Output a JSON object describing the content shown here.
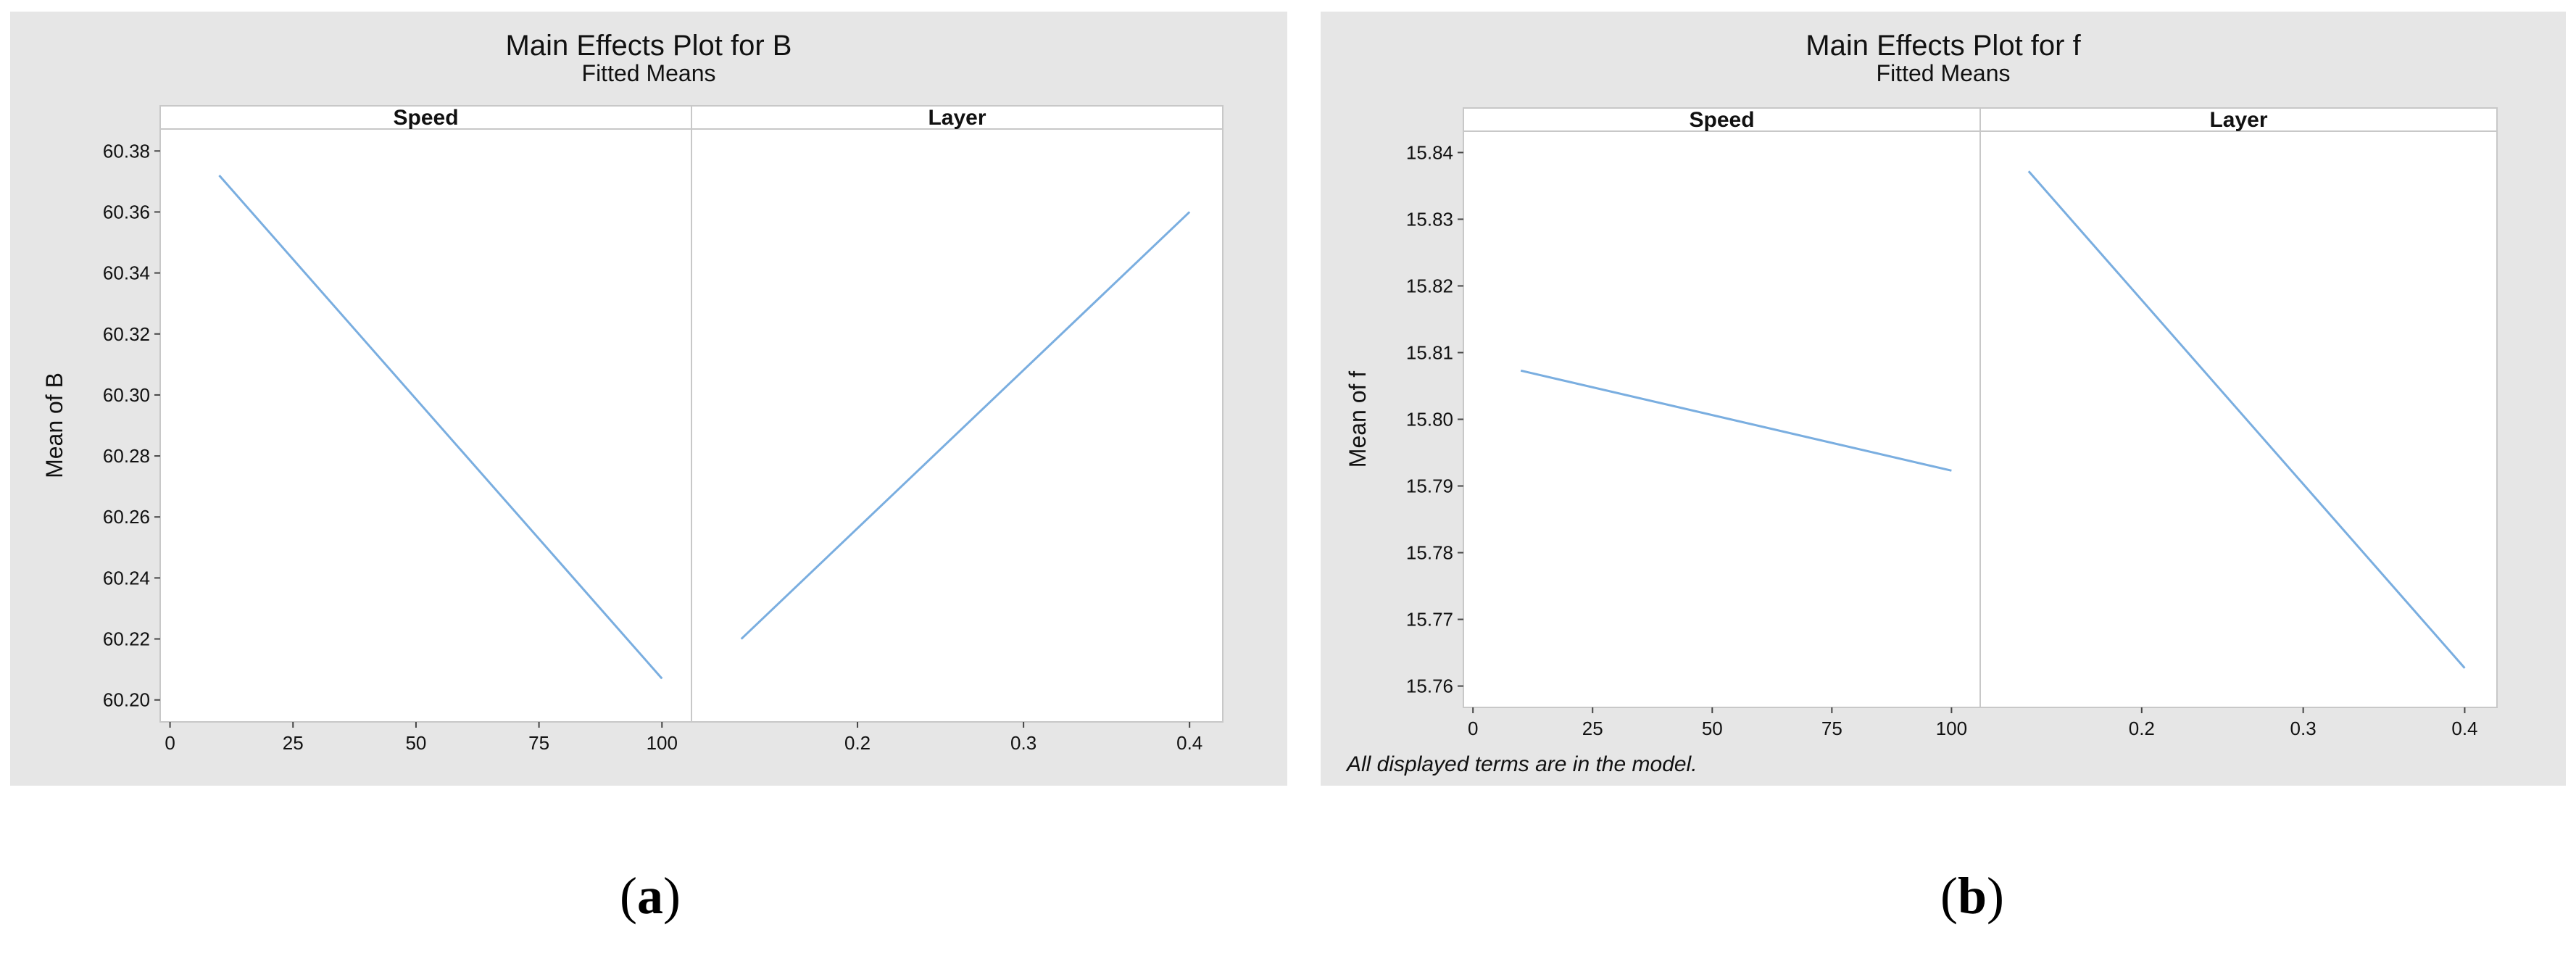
{
  "chart_data": [
    {
      "type": "line",
      "title": "Main Effects Plot for B",
      "subtitle": "Fitted Means",
      "ylabel": "Mean of B",
      "ylim": [
        60.2,
        60.38
      ],
      "yticks": [
        "60.20",
        "60.22",
        "60.24",
        "60.26",
        "60.28",
        "60.30",
        "60.32",
        "60.34",
        "60.36",
        "60.38"
      ],
      "color": "#7aaee0",
      "footnote": "",
      "caption": "a",
      "facets": [
        {
          "name": "Speed",
          "xlim": [
            -2,
            106
          ],
          "xticks": [
            "0",
            "25",
            "50",
            "75",
            "100"
          ],
          "x": [
            10,
            100
          ],
          "y": [
            60.372,
            60.207
          ]
        },
        {
          "name": "Layer",
          "xlim": [
            0.1,
            0.42
          ],
          "xticks": [
            "0.2",
            "0.3",
            "0.4"
          ],
          "x": [
            0.13,
            0.4
          ],
          "y": [
            60.22,
            60.36
          ]
        }
      ]
    },
    {
      "type": "line",
      "title": "Main Effects Plot for f",
      "subtitle": "Fitted Means",
      "ylabel": "Mean of f",
      "ylim": [
        15.76,
        15.84
      ],
      "yticks": [
        "15.76",
        "15.77",
        "15.78",
        "15.79",
        "15.80",
        "15.81",
        "15.82",
        "15.83",
        "15.84"
      ],
      "color": "#7aaee0",
      "footnote": "All displayed terms are in the model.",
      "caption": "b",
      "facets": [
        {
          "name": "Speed",
          "xlim": [
            -2,
            106
          ],
          "xticks": [
            "0",
            "25",
            "50",
            "75",
            "100"
          ],
          "x": [
            10,
            100
          ],
          "y": [
            15.8073,
            15.7923
          ]
        },
        {
          "name": "Layer",
          "xlim": [
            0.1,
            0.42
          ],
          "xticks": [
            "0.2",
            "0.3",
            "0.4"
          ],
          "x": [
            0.13,
            0.4
          ],
          "y": [
            15.8372,
            15.7627
          ]
        }
      ]
    }
  ]
}
